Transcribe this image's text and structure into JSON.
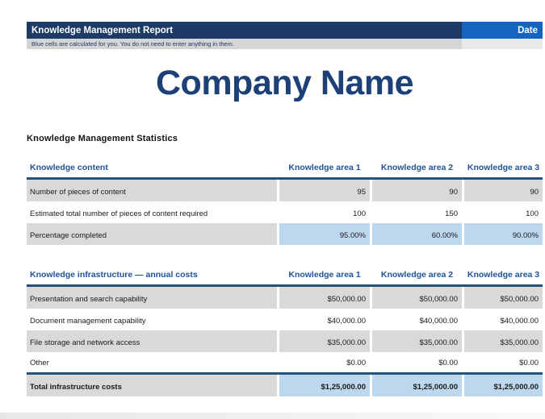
{
  "header": {
    "title": "Knowledge Management Report",
    "date_label": "Date",
    "note": "Blue cells are calculated for you. You do not need to enter anything in them."
  },
  "company": {
    "name": "Company Name"
  },
  "section_title": "Knowledge Management Statistics",
  "colors": {
    "banner_navy": "#1e3a66",
    "date_blue": "#1565c0",
    "title_navy": "#1d4077",
    "table_header_blue": "#1f5394",
    "rule_blue": "#24527c",
    "calculated_cell_blue": "#bdd7ee",
    "shaded_row_gray": "#d9d9d9"
  },
  "tables": [
    {
      "title": "Knowledge content",
      "columns": [
        "Knowledge area 1",
        "Knowledge area 2",
        "Knowledge area 3"
      ],
      "rows": [
        {
          "label": "Number of pieces of content",
          "values": [
            "95",
            "90",
            "90"
          ]
        },
        {
          "label": "Estimated total number of pieces of content required",
          "values": [
            "100",
            "150",
            "100"
          ]
        },
        {
          "label": "Percentage completed",
          "values": [
            "95.00%",
            "60.00%",
            "90.00%"
          ]
        }
      ]
    },
    {
      "title": "Knowledge infrastructure — annual costs",
      "columns": [
        "Knowledge area 1",
        "Knowledge area 2",
        "Knowledge area 3"
      ],
      "rows": [
        {
          "label": "Presentation and search capability",
          "values": [
            "$50,000.00",
            "$50,000.00",
            "$50,000.00"
          ]
        },
        {
          "label": "Document management capability",
          "values": [
            "$40,000.00",
            "$40,000.00",
            "$40,000.00"
          ]
        },
        {
          "label": "File storage and network access",
          "values": [
            "$35,000.00",
            "$35,000.00",
            "$35,000.00"
          ]
        },
        {
          "label": "Other",
          "values": [
            "$0.00",
            "$0.00",
            "$0.00"
          ]
        },
        {
          "label": "Total infrastructure costs",
          "values": [
            "$1,25,000.00",
            "$1,25,000.00",
            "$1,25,000.00"
          ]
        }
      ]
    }
  ]
}
